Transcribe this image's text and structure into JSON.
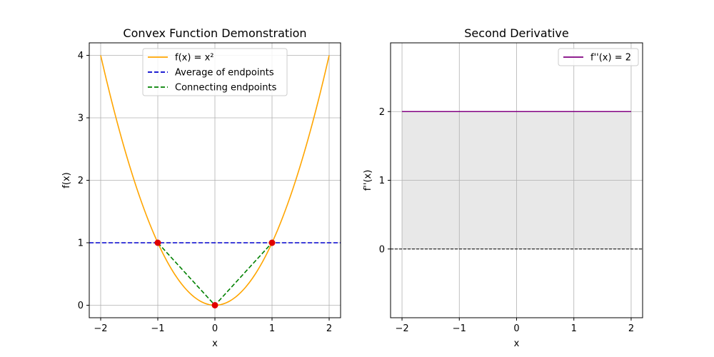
{
  "chart_data": [
    {
      "type": "line",
      "title": "Convex Function Demonstration",
      "xlabel": "x",
      "ylabel": "f(x)",
      "xlim": [
        -2.2,
        2.2
      ],
      "ylim": [
        -0.2,
        4.2
      ],
      "xticks": [
        -2,
        -1,
        0,
        1,
        2
      ],
      "yticks": [
        0,
        1,
        2,
        3,
        4
      ],
      "grid": true,
      "legend_position": "top-center",
      "series": [
        {
          "name": "f(x) = x²",
          "function": "x^2",
          "x_range": [
            -2,
            2
          ],
          "color": "#ffa500",
          "style": "solid"
        },
        {
          "name": "Average of endpoints",
          "x": [
            -2.2,
            2.2
          ],
          "y": [
            1,
            1
          ],
          "color": "#0000cd",
          "style": "dashed"
        },
        {
          "name": "Connecting endpoints",
          "x": [
            -1,
            0,
            1
          ],
          "y": [
            1,
            0,
            1
          ],
          "color": "#008000",
          "style": "dashed"
        }
      ],
      "points": [
        {
          "x": -1,
          "y": 1,
          "color": "#e00000"
        },
        {
          "x": 0,
          "y": 0,
          "color": "#e00000"
        },
        {
          "x": 1,
          "y": 1,
          "color": "#e00000"
        }
      ],
      "tick_labels_x": [
        "−2",
        "−1",
        "0",
        "1",
        "2"
      ],
      "tick_labels_y": [
        "0",
        "1",
        "2",
        "3",
        "4"
      ]
    },
    {
      "type": "line",
      "title": "Second Derivative",
      "xlabel": "x",
      "ylabel": "f''(x)",
      "xlim": [
        -2.2,
        2.2
      ],
      "ylim": [
        -1,
        3
      ],
      "xticks": [
        -2,
        -1,
        0,
        1,
        2
      ],
      "yticks": [
        0,
        1,
        2
      ],
      "grid": true,
      "legend_position": "top-right",
      "series": [
        {
          "name": "f''(x) = 2",
          "x": [
            -2,
            2
          ],
          "y": [
            2,
            2
          ],
          "color": "#800080",
          "style": "solid"
        }
      ],
      "fill": {
        "x": [
          -2,
          2
        ],
        "y_low": 0,
        "y_high": 2,
        "color": "#e8e8e8"
      },
      "reference_line": {
        "y": 0,
        "color": "#000000",
        "style": "dashed"
      },
      "tick_labels_x": [
        "−2",
        "−1",
        "0",
        "1",
        "2"
      ],
      "tick_labels_y": [
        "0",
        "1",
        "2"
      ]
    }
  ]
}
